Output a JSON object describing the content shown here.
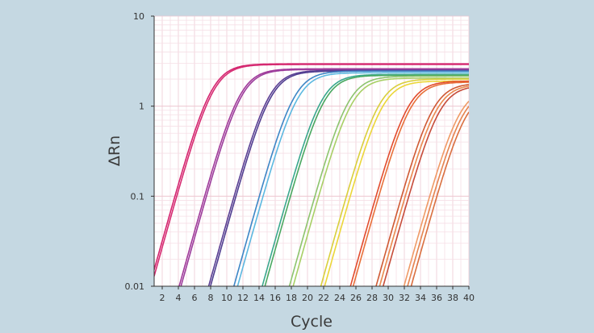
{
  "colors": {
    "background": "#c5d8e2",
    "plot_background": "#ffffff",
    "minor_grid": "#f6dfe6",
    "major_grid": "#edc9d3",
    "axis": "#333333"
  },
  "chart_data": {
    "type": "line",
    "title": "",
    "xlabel": "Cycle",
    "ylabel": "ΔRn",
    "xlim": [
      1,
      40
    ],
    "ylim": [
      0.01,
      10
    ],
    "yscale": "log",
    "grid": true,
    "legend": "none",
    "x_ticks": [
      "2",
      "4",
      "6",
      "8",
      "10",
      "12",
      "14",
      "16",
      "18",
      "20",
      "22",
      "24",
      "26",
      "28",
      "30",
      "32",
      "34",
      "36",
      "38",
      "40"
    ],
    "y_ticks": [
      "0.01",
      "0.1",
      "1",
      "10"
    ],
    "series": [
      {
        "color": "#d4246f",
        "plateau": 2.95,
        "midpoint": 8.1,
        "slope": 1.35
      },
      {
        "color": "#d62c72",
        "plateau": 2.9,
        "midpoint": 8.3,
        "slope": 1.35
      },
      {
        "color": "#a03a9a",
        "plateau": 2.6,
        "midpoint": 11.6,
        "slope": 1.35
      },
      {
        "color": "#9c3e9c",
        "plateau": 2.55,
        "midpoint": 11.8,
        "slope": 1.35
      },
      {
        "color": "#5a3f93",
        "plateau": 2.5,
        "midpoint": 15.2,
        "slope": 1.35
      },
      {
        "color": "#503e90",
        "plateau": 2.45,
        "midpoint": 15.4,
        "slope": 1.35
      },
      {
        "color": "#3d86c6",
        "plateau": 2.45,
        "midpoint": 18.3,
        "slope": 1.35
      },
      {
        "color": "#5cb8e0",
        "plateau": 2.35,
        "midpoint": 18.7,
        "slope": 1.35
      },
      {
        "color": "#3aa88e",
        "plateau": 2.25,
        "midpoint": 21.7,
        "slope": 1.35
      },
      {
        "color": "#49a860",
        "plateau": 2.2,
        "midpoint": 22.0,
        "slope": 1.35
      },
      {
        "color": "#8dc46e",
        "plateau": 2.15,
        "midpoint": 25.0,
        "slope": 1.35
      },
      {
        "color": "#a8cf66",
        "plateau": 2.05,
        "midpoint": 25.4,
        "slope": 1.35
      },
      {
        "color": "#d9cf3c",
        "plateau": 2.0,
        "midpoint": 28.8,
        "slope": 1.35
      },
      {
        "color": "#ebd638",
        "plateau": 1.9,
        "midpoint": 29.2,
        "slope": 1.35
      },
      {
        "color": "#e24c2e",
        "plateau": 1.9,
        "midpoint": 32.4,
        "slope": 1.35
      },
      {
        "color": "#e8703a",
        "plateau": 1.85,
        "midpoint": 32.7,
        "slope": 1.35
      },
      {
        "color": "#cf5a34",
        "plateau": 1.8,
        "midpoint": 35.5,
        "slope": 1.35
      },
      {
        "color": "#ea8a4e",
        "plateau": 1.75,
        "midpoint": 35.9,
        "slope": 1.35
      },
      {
        "color": "#c64c3a",
        "plateau": 1.7,
        "midpoint": 36.3,
        "slope": 1.35
      },
      {
        "color": "#ef9a66",
        "plateau": 1.6,
        "midpoint": 38.8,
        "slope": 1.35
      },
      {
        "color": "#e5844e",
        "plateau": 1.55,
        "midpoint": 39.2,
        "slope": 1.35
      },
      {
        "color": "#d96f3f",
        "plateau": 1.5,
        "midpoint": 39.6,
        "slope": 1.35
      }
    ]
  }
}
